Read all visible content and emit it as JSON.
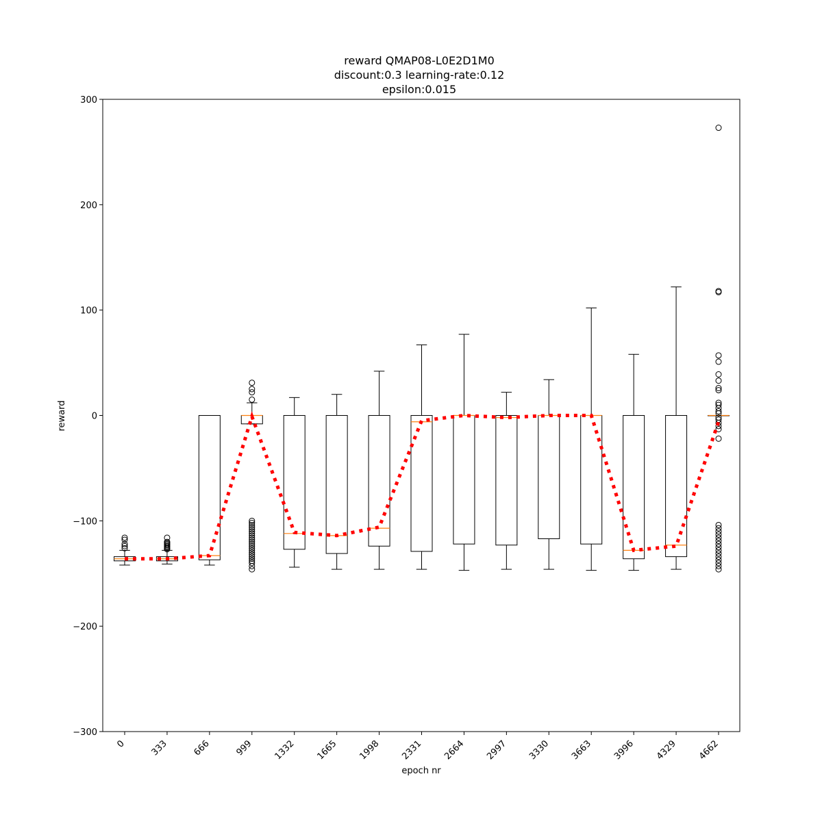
{
  "chart_data": {
    "type": "box",
    "title": [
      "reward QMAP08-L0E2D1M0",
      "discount:0.3 learning-rate:0.12",
      "epsilon:0.015"
    ],
    "xlabel": "epoch nr",
    "ylabel": "reward",
    "ylim": [
      -300,
      300
    ],
    "yticks": [
      -300,
      -200,
      -100,
      0,
      100,
      200,
      300
    ],
    "yticklabels": [
      "−300",
      "−200",
      "−100",
      "0",
      "100",
      "200",
      "300"
    ],
    "categories": [
      "0",
      "333",
      "666",
      "999",
      "1332",
      "1665",
      "1998",
      "2331",
      "2664",
      "2997",
      "3330",
      "3663",
      "3996",
      "4329",
      "4662"
    ],
    "boxes": [
      {
        "whisker_low": -142,
        "q1": -138,
        "median": -136,
        "q3": -134,
        "whisker_high": -128,
        "outliers": [
          -116,
          -118,
          -122,
          -124,
          -126
        ]
      },
      {
        "whisker_low": -141,
        "q1": -138,
        "median": -136,
        "q3": -134,
        "whisker_high": -128,
        "outliers": [
          -116,
          -120,
          -121,
          -122,
          -123,
          -124,
          -125,
          -126,
          -127
        ]
      },
      {
        "whisker_low": -142,
        "q1": -137,
        "median": -133,
        "q3": 0,
        "whisker_high": 0,
        "outliers": []
      },
      {
        "whisker_low": -8,
        "q1": -8,
        "median": 0,
        "q3": 0,
        "whisker_high": 12,
        "outliers": [
          31,
          25,
          22,
          15,
          -100,
          -102,
          -104,
          -106,
          -108,
          -110,
          -112,
          -114,
          -116,
          -118,
          -120,
          -122,
          -124,
          -126,
          -128,
          -130,
          -132,
          -134,
          -136,
          -138,
          -140,
          -143,
          -146
        ]
      },
      {
        "whisker_low": -144,
        "q1": -127,
        "median": -112,
        "q3": 0,
        "whisker_high": 17,
        "outliers": []
      },
      {
        "whisker_low": -146,
        "q1": -131,
        "median": -114,
        "q3": 0,
        "whisker_high": 20,
        "outliers": []
      },
      {
        "whisker_low": -146,
        "q1": -124,
        "median": -107,
        "q3": 0,
        "whisker_high": 42,
        "outliers": []
      },
      {
        "whisker_low": -146,
        "q1": -129,
        "median": -6,
        "q3": 0,
        "whisker_high": 67,
        "outliers": []
      },
      {
        "whisker_low": -147,
        "q1": -122,
        "median": 0,
        "q3": 0,
        "whisker_high": 77,
        "outliers": []
      },
      {
        "whisker_low": -146,
        "q1": -123,
        "median": -2,
        "q3": 0,
        "whisker_high": 22,
        "outliers": []
      },
      {
        "whisker_low": -146,
        "q1": -117,
        "median": 0,
        "q3": 0,
        "whisker_high": 34,
        "outliers": []
      },
      {
        "whisker_low": -147,
        "q1": -122,
        "median": 0,
        "q3": 0,
        "whisker_high": 102,
        "outliers": []
      },
      {
        "whisker_low": -147,
        "q1": -136,
        "median": -128,
        "q3": 0,
        "whisker_high": 58,
        "outliers": []
      },
      {
        "whisker_low": -146,
        "q1": -134,
        "median": -123,
        "q3": 0,
        "whisker_high": 122,
        "outliers": []
      },
      {
        "whisker_low": 0,
        "q1": 0,
        "median": 0,
        "q3": 0,
        "whisker_high": 0,
        "outliers": [
          273,
          118,
          117,
          57,
          51,
          39,
          33,
          26,
          24,
          12,
          10,
          7,
          4,
          2,
          -2,
          -4,
          -7,
          -10,
          -13,
          -22,
          -104,
          -107,
          -110,
          -113,
          -116,
          -119,
          -122,
          -125,
          -128,
          -131,
          -134,
          -137,
          -140,
          -143,
          -146
        ]
      }
    ],
    "mean_line": {
      "color": "#ff0000",
      "style": "dotted",
      "values": [
        -136,
        -136,
        -133,
        -1,
        -111,
        -114,
        -106,
        -5,
        0,
        -2,
        0,
        0,
        -128,
        -124,
        -6
      ]
    },
    "colors": {
      "median": "#ff7f0e",
      "box": "#000000",
      "mean_line": "#ff0000"
    }
  }
}
